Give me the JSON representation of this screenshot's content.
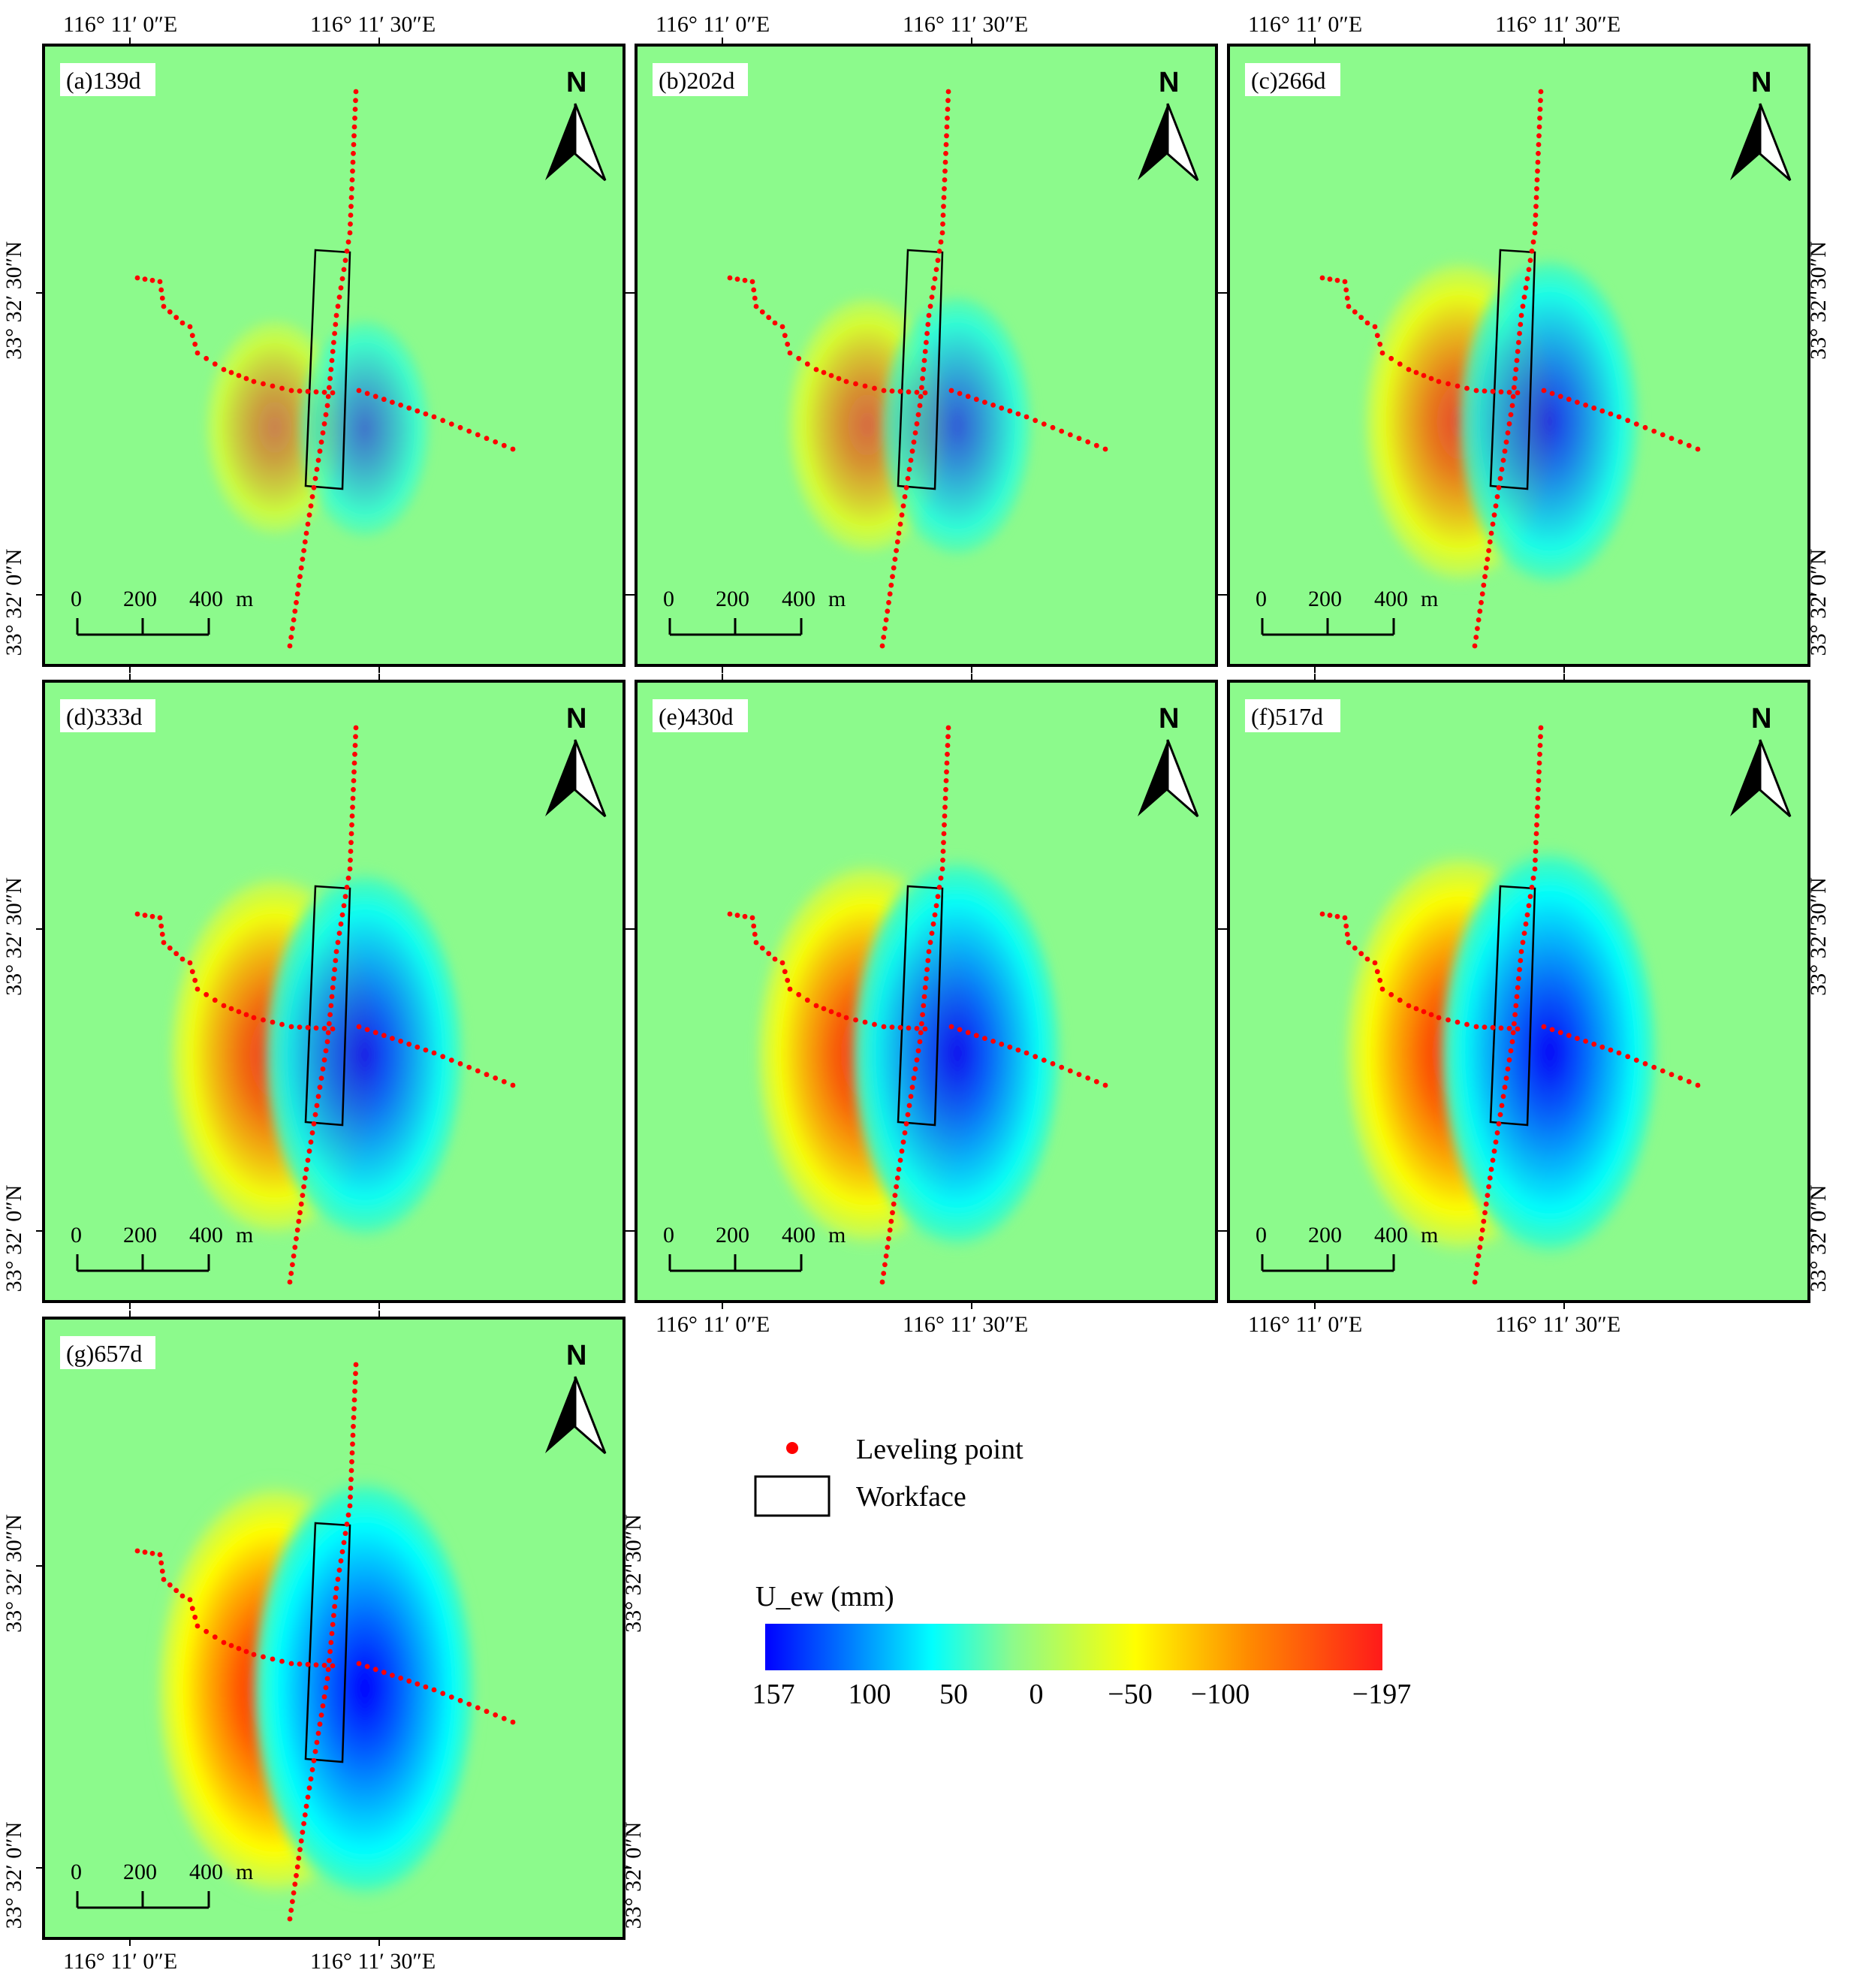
{
  "figure": {
    "panels": [
      {
        "label": "(a)139d",
        "scale": 0.3
      },
      {
        "label": "(b)202d",
        "scale": 0.45
      },
      {
        "label": "(c)266d",
        "scale": 0.68
      },
      {
        "label": "(d)333d",
        "scale": 0.82
      },
      {
        "label": "(e)430d",
        "scale": 0.9
      },
      {
        "label": "(f)517d",
        "scale": 0.96
      },
      {
        "label": "(g)657d",
        "scale": 1.0
      }
    ],
    "north_label": "N",
    "lon_labels": [
      "116°  11′ 0″E",
      "116°  11′ 30″E"
    ],
    "lat_labels": [
      "33°  32′ 30″N",
      "33°  32′ 0″N"
    ],
    "scalebar": {
      "ticks": [
        "0",
        "200",
        "400"
      ],
      "unit": "m"
    },
    "legend": {
      "leveling_point": "Leveling point",
      "workface": "Workface",
      "colorbar_title": "U_ew (mm)",
      "colorbar_ticks": [
        "157",
        "100",
        "50",
        "0",
        "−50",
        "−100",
        "−197"
      ]
    },
    "colors": {
      "background": "#8CFA8C",
      "leveling": "#FF0000",
      "positive_max": "#0000FF",
      "negative_max": "#FF1A1A"
    }
  }
}
